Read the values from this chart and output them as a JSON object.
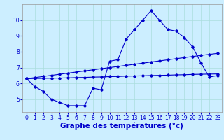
{
  "xlabel": "Graphe des températures (°c)",
  "background_color": "#cceeff",
  "line_color": "#0000cc",
  "xlim": [
    -0.5,
    23.5
  ],
  "ylim": [
    4.2,
    11.0
  ],
  "yticks": [
    5,
    6,
    7,
    8,
    9,
    10
  ],
  "xticks": [
    0,
    1,
    2,
    3,
    4,
    5,
    6,
    7,
    8,
    9,
    10,
    11,
    12,
    13,
    14,
    15,
    16,
    17,
    18,
    19,
    20,
    21,
    22,
    23
  ],
  "curve1_x": [
    0,
    1,
    2,
    3,
    4,
    5,
    6,
    7,
    8,
    9,
    10,
    11,
    12,
    13,
    14,
    15,
    16,
    17,
    18,
    19,
    20,
    21,
    22,
    23
  ],
  "curve1_y": [
    6.3,
    5.8,
    5.5,
    5.0,
    4.8,
    4.6,
    4.6,
    4.6,
    5.7,
    5.6,
    7.4,
    7.5,
    8.8,
    9.4,
    10.0,
    10.6,
    10.0,
    9.4,
    9.3,
    8.9,
    8.3,
    7.3,
    6.4,
    6.5
  ],
  "curve2_x": [
    0,
    1,
    2,
    3,
    4,
    5,
    6,
    7,
    8,
    9,
    10,
    11,
    12,
    13,
    14,
    15,
    16,
    17,
    18,
    19,
    20,
    21,
    22,
    23
  ],
  "curve2_y": [
    6.3,
    6.31,
    6.32,
    6.33,
    6.34,
    6.35,
    6.37,
    6.38,
    6.4,
    6.41,
    6.43,
    6.44,
    6.46,
    6.47,
    6.48,
    6.5,
    6.51,
    6.52,
    6.54,
    6.55,
    6.57,
    6.58,
    6.59,
    6.6
  ],
  "curve3_x": [
    0,
    1,
    2,
    3,
    4,
    5,
    6,
    7,
    8,
    9,
    10,
    11,
    12,
    13,
    14,
    15,
    16,
    17,
    18,
    19,
    20,
    21,
    22,
    23
  ],
  "curve3_y": [
    6.3,
    6.37,
    6.44,
    6.51,
    6.58,
    6.65,
    6.72,
    6.79,
    6.86,
    6.93,
    7.0,
    7.07,
    7.14,
    7.21,
    7.28,
    7.35,
    7.42,
    7.49,
    7.56,
    7.63,
    7.7,
    7.77,
    7.83,
    7.9
  ],
  "grid_color": "#aadddd",
  "tick_fontsize": 5.5,
  "xlabel_fontsize": 7.5
}
